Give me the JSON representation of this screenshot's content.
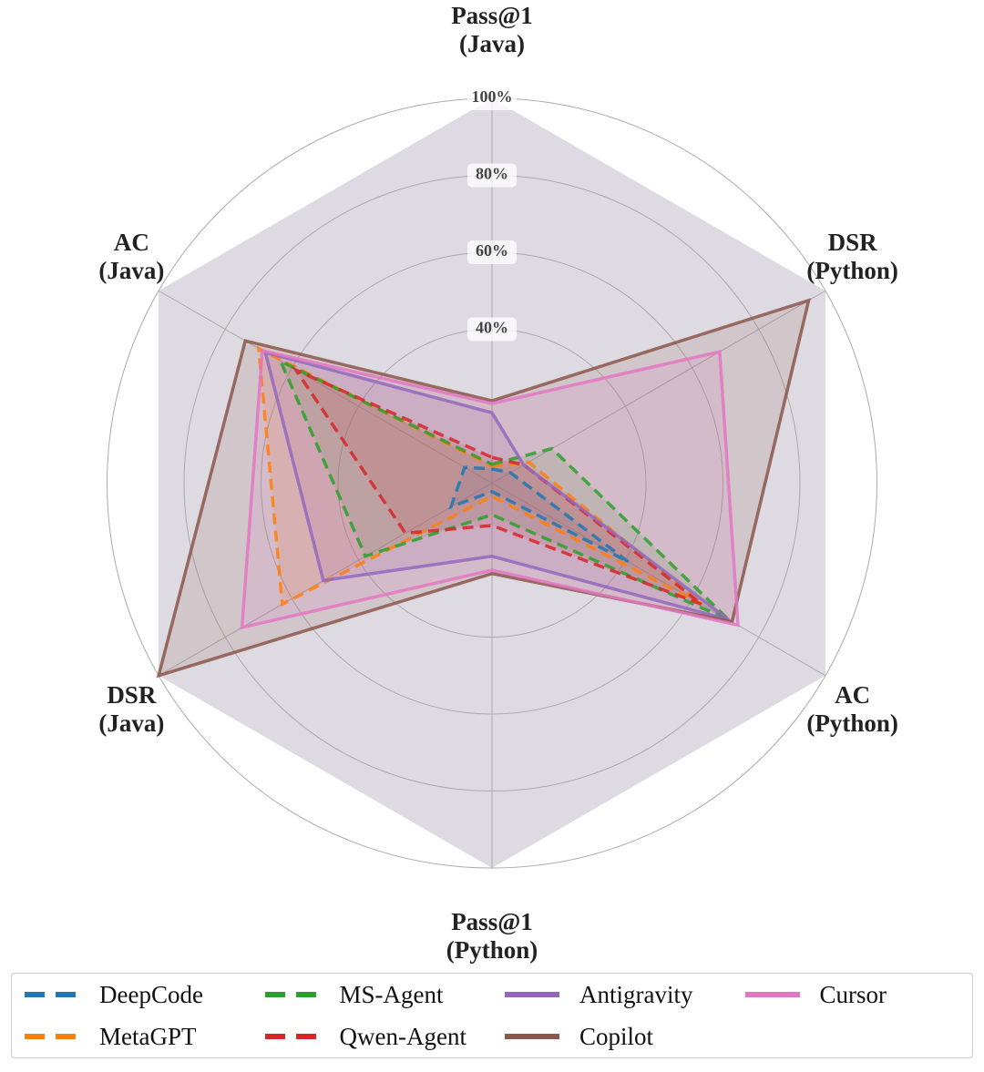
{
  "chart_data": {
    "type": "radar",
    "categories": [
      "Pass@1\n(Java)",
      "DSR\n(Python)",
      "AC\n(Python)",
      "Pass@1\n(Python)",
      "DSR\n(Java)",
      "AC\n(Java)"
    ],
    "ylim": [
      0,
      100
    ],
    "yticks": [
      {
        "value": 40,
        "label": "40%"
      },
      {
        "value": 60,
        "label": "60%"
      },
      {
        "value": 80,
        "label": "80%"
      },
      {
        "value": 100,
        "label": "100%"
      }
    ],
    "grid": true,
    "series": [
      {
        "name": "DeepCode",
        "color": "#1f77b4",
        "style": "dashed",
        "values": [
          3.7,
          5.5,
          41,
          2.2,
          12.3,
          8.2
        ]
      },
      {
        "name": "MetaGPT",
        "color": "#ff7f0e",
        "style": "dashed",
        "values": [
          4.4,
          11,
          63,
          3.4,
          62.9,
          70
        ]
      },
      {
        "name": "MS-Agent",
        "color": "#2ca02c",
        "style": "dashed",
        "values": [
          4.9,
          18,
          71,
          8.2,
          38,
          63.4
        ]
      },
      {
        "name": "Qwen-Agent",
        "color": "#d62728",
        "style": "dashed",
        "values": [
          6.7,
          9.5,
          63,
          11,
          26,
          58.8
        ]
      },
      {
        "name": "Antigravity",
        "color": "#9467bd",
        "style": "solid",
        "values": [
          18.3,
          9.5,
          71,
          19,
          50.6,
          68
        ]
      },
      {
        "name": "Copilot",
        "color": "#8c564b",
        "style": "solid",
        "values": [
          21.4,
          95,
          72,
          23.5,
          100,
          74
        ]
      },
      {
        "name": "Cursor",
        "color": "#e377c2",
        "style": "solid",
        "values": [
          20.7,
          68.3,
          73.8,
          22.6,
          75,
          68.9
        ]
      }
    ]
  }
}
